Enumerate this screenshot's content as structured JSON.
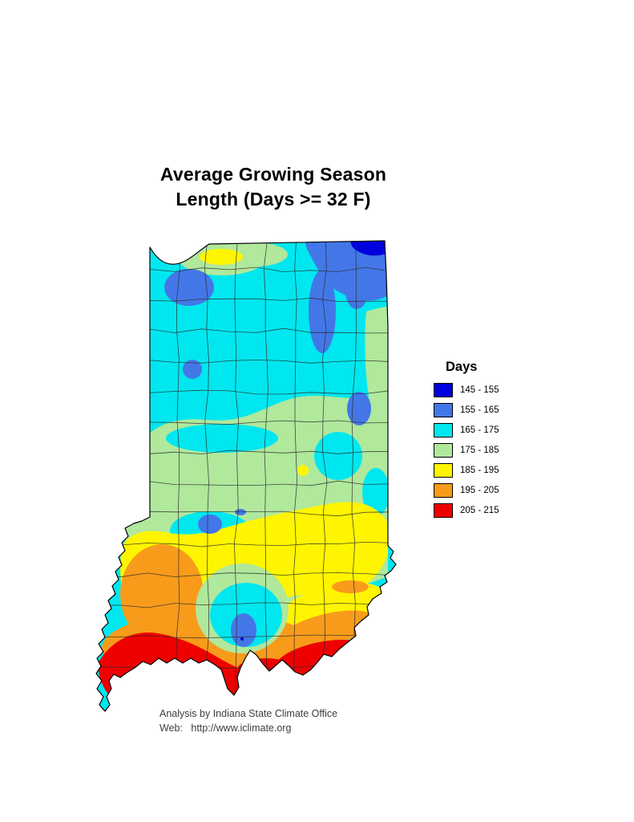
{
  "title": {
    "line1": "Average Growing Season",
    "line2": "Length (Days >= 32 F)"
  },
  "legend": {
    "title": "Days",
    "items": [
      {
        "label": "145 - 155",
        "color": "#0000DC"
      },
      {
        "label": "155 - 165",
        "color": "#4377E8"
      },
      {
        "label": "165 - 175",
        "color": "#00E7EF"
      },
      {
        "label": "175 - 185",
        "color": "#B0E89C"
      },
      {
        "label": "185 - 195",
        "color": "#FFF500"
      },
      {
        "label": "195 - 205",
        "color": "#F89B1B"
      },
      {
        "label": "205 - 215",
        "color": "#EE0000"
      }
    ]
  },
  "map": {
    "outline_color": "#000000",
    "county_line_color": "#2d2d2d"
  },
  "footer": {
    "line1": "Analysis by Indiana State Climate Office",
    "line2": "Web:   http://www.iclimate.org"
  }
}
